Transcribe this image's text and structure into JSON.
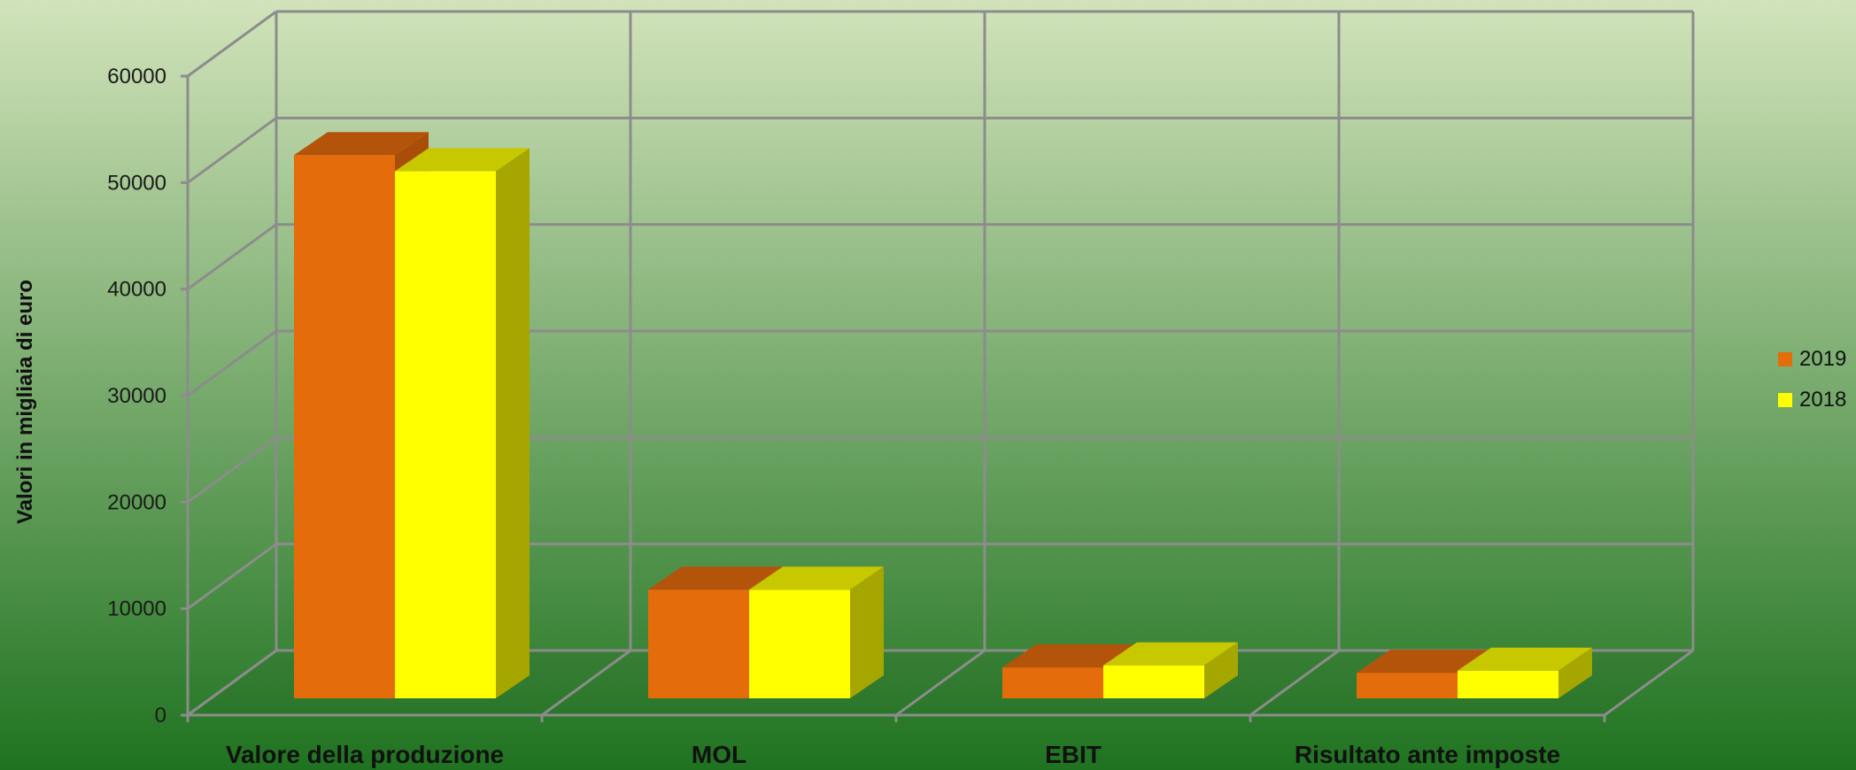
{
  "chart_data": {
    "type": "bar",
    "subtype": "3d-clustered-column",
    "title": "",
    "xlabel": "",
    "ylabel": "Valori in migliaia di euro",
    "ylim": [
      0,
      60000
    ],
    "y_ticks": [
      "0",
      "10000",
      "20000",
      "30000",
      "40000",
      "50000",
      "60000"
    ],
    "categories": [
      "Valore della produzione",
      "MOL",
      "EBIT",
      "Risultato ante imposte"
    ],
    "series": [
      {
        "name": "2019",
        "values": [
          51000,
          10200,
          2900,
          2400
        ],
        "color": "#E46C0A",
        "top_color": "#B3540A",
        "side_color": "#A84E08"
      },
      {
        "name": "2018",
        "values": [
          49500,
          10200,
          3100,
          2600
        ],
        "color": "#FFFF00",
        "top_color": "#C8C800",
        "side_color": "#A6A600"
      }
    ],
    "grid": true,
    "legend_position": "right",
    "background": {
      "top": "#D2E3BB",
      "bottom": "#1F7320"
    },
    "grid_color": "#8C8C8C"
  }
}
